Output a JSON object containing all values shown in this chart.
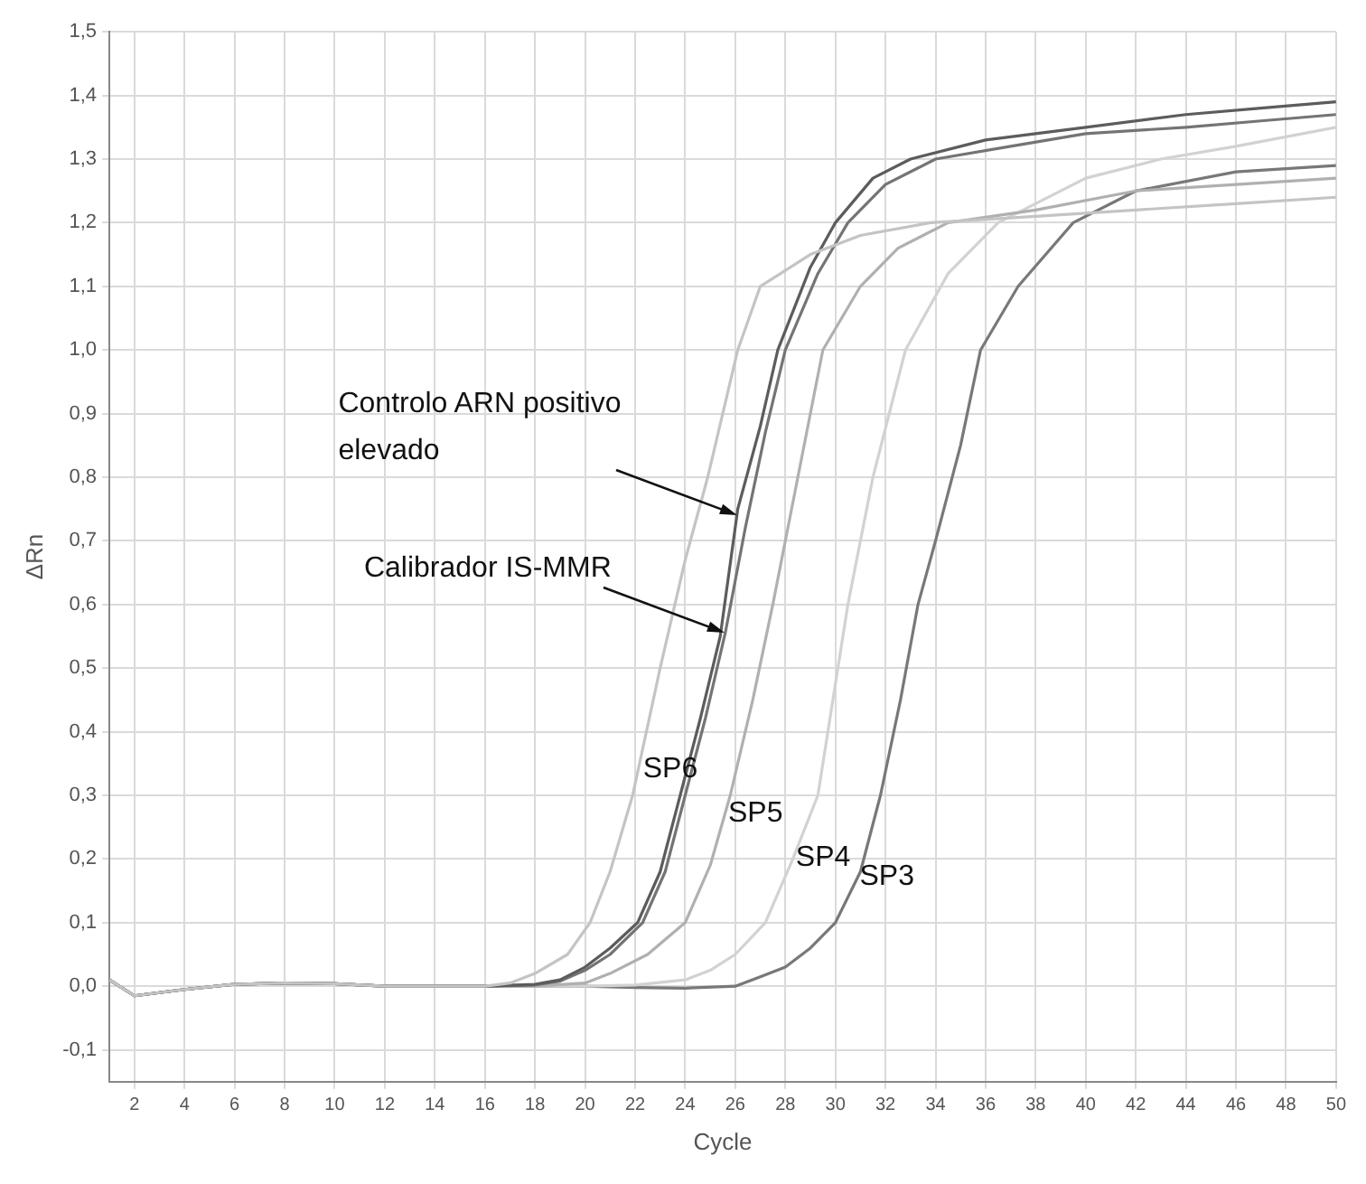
{
  "chart_data": {
    "type": "line",
    "xlabel": "Cycle",
    "ylabel": "ΔRn",
    "xlim": [
      1,
      50
    ],
    "xticks": [
      2,
      4,
      6,
      8,
      10,
      12,
      14,
      16,
      18,
      20,
      22,
      24,
      26,
      28,
      30,
      32,
      34,
      36,
      38,
      40,
      42,
      44,
      46,
      48,
      50
    ],
    "ylim": [
      -0.15,
      1.5
    ],
    "yticks": [
      {
        "value": -0.1,
        "label": "-0,1"
      },
      {
        "value": 0,
        "label": "0,0"
      },
      {
        "value": 0.1,
        "label": "0,1"
      },
      {
        "value": 0.2,
        "label": "0,2"
      },
      {
        "value": 0.3,
        "label": "0,3"
      },
      {
        "value": 0.4,
        "label": "0,4"
      },
      {
        "value": 0.5,
        "label": "0,5"
      },
      {
        "value": 0.6,
        "label": "0,6"
      },
      {
        "value": 0.7,
        "label": "0,7"
      },
      {
        "value": 0.8,
        "label": "0,8"
      },
      {
        "value": 0.9,
        "label": "0,9"
      },
      {
        "value": 1.0,
        "label": "1,0"
      },
      {
        "value": 1.1,
        "label": "1,1"
      },
      {
        "value": 1.2,
        "label": "1,2"
      },
      {
        "value": 1.3,
        "label": "1,3"
      },
      {
        "value": 1.4,
        "label": "1,4"
      },
      {
        "value": 1.5,
        "label": "1,5"
      }
    ],
    "grid": true,
    "legend": false,
    "marker": "none",
    "line_style": "solid",
    "series": [
      {
        "color": "#c4c4c4",
        "x": [
          1,
          2,
          4,
          6,
          8,
          10,
          12,
          14,
          16,
          17,
          18,
          19.3,
          20.2,
          21,
          21.9,
          23,
          24,
          24.9,
          26.1,
          27,
          29,
          31,
          33.8,
          38,
          42,
          46,
          50
        ],
        "values": [
          0.01,
          -0.015,
          -0.005,
          0.003,
          0.005,
          0.004,
          0.0,
          0.0,
          0.0,
          0.005,
          0.02,
          0.05,
          0.1,
          0.18,
          0.3,
          0.5,
          0.67,
          0.8,
          1.0,
          1.1,
          1.15,
          1.18,
          1.2,
          1.21,
          1.22,
          1.23,
          1.24
        ]
      },
      {
        "color": "#5c5c5c",
        "x": [
          1,
          2,
          4,
          6,
          8,
          10,
          12,
          14,
          16,
          18,
          19,
          20,
          21,
          22.1,
          23,
          23.8,
          24.6,
          25.4,
          26.1,
          27,
          27.7,
          29,
          30,
          31.5,
          33,
          36,
          40,
          44,
          47,
          50
        ],
        "values": [
          0.01,
          -0.015,
          -0.005,
          0.003,
          0.005,
          0.004,
          0.0,
          0.0,
          0.0,
          0.003,
          0.01,
          0.03,
          0.06,
          0.1,
          0.18,
          0.3,
          0.42,
          0.55,
          0.75,
          0.88,
          1.0,
          1.13,
          1.2,
          1.27,
          1.3,
          1.33,
          1.35,
          1.37,
          1.38,
          1.39
        ]
      },
      {
        "color": "#747474",
        "x": [
          1,
          2,
          4,
          6,
          8,
          10,
          12,
          14,
          16,
          18,
          19,
          20,
          21,
          22.3,
          23.2,
          24,
          24.8,
          25.6,
          26.4,
          27.2,
          28,
          29.3,
          30.5,
          32,
          34,
          37,
          40,
          44,
          47,
          50
        ],
        "values": [
          0.01,
          -0.015,
          -0.005,
          0.003,
          0.005,
          0.004,
          0.0,
          0.0,
          0.0,
          0.002,
          0.008,
          0.025,
          0.05,
          0.1,
          0.18,
          0.3,
          0.42,
          0.555,
          0.72,
          0.87,
          1.0,
          1.12,
          1.2,
          1.26,
          1.3,
          1.32,
          1.34,
          1.35,
          1.36,
          1.37
        ]
      },
      {
        "color": "#b0b0b0",
        "x": [
          1,
          2,
          4,
          6,
          8,
          10,
          12,
          14,
          16,
          18,
          20,
          21,
          22.5,
          24,
          25,
          25.8,
          26.7,
          27.5,
          28.5,
          29.5,
          31,
          32.5,
          34.5,
          38,
          42,
          46,
          50
        ],
        "values": [
          0.01,
          -0.015,
          -0.005,
          0.003,
          0.005,
          0.004,
          0.0,
          0.0,
          0.0,
          0.0,
          0.005,
          0.02,
          0.05,
          0.1,
          0.19,
          0.3,
          0.45,
          0.6,
          0.8,
          1.0,
          1.1,
          1.16,
          1.2,
          1.22,
          1.25,
          1.26,
          1.27
        ]
      },
      {
        "color": "#d2d2d2",
        "x": [
          1,
          2,
          4,
          6,
          8,
          10,
          12,
          14,
          16,
          18,
          20,
          22,
          24,
          25,
          26,
          27.2,
          28.3,
          29.3,
          30.5,
          31.5,
          32.8,
          34.5,
          36.5,
          40,
          43,
          46,
          50
        ],
        "values": [
          0.01,
          -0.015,
          -0.005,
          0.003,
          0.005,
          0.004,
          0.0,
          0.0,
          0.0,
          0.0,
          0.0,
          0.002,
          0.01,
          0.025,
          0.05,
          0.1,
          0.2,
          0.3,
          0.6,
          0.8,
          1.0,
          1.12,
          1.2,
          1.27,
          1.3,
          1.32,
          1.35
        ]
      },
      {
        "color": "#787878",
        "x": [
          1,
          2,
          4,
          6,
          8,
          10,
          12,
          14,
          16,
          18,
          20,
          22,
          24,
          26,
          27,
          28,
          29,
          30,
          31,
          31.8,
          32.6,
          33.3,
          34,
          35,
          35.8,
          37.3,
          39.5,
          42,
          46,
          50
        ],
        "values": [
          0.01,
          -0.015,
          -0.005,
          0.003,
          0.005,
          0.004,
          0.0,
          0.0,
          0.0,
          0.0,
          0.0,
          -0.002,
          -0.003,
          0.0,
          0.015,
          0.03,
          0.06,
          0.1,
          0.18,
          0.3,
          0.45,
          0.6,
          0.7,
          0.85,
          1.0,
          1.1,
          1.2,
          1.25,
          1.28,
          1.29
        ]
      }
    ],
    "annotations": [
      {
        "text": "Controlo ARN positivo elevado",
        "x": 26.05,
        "y": 0.74
      },
      {
        "text": "Calibrador IS-MMR",
        "x": 25.6,
        "y": 0.555
      },
      {
        "text": "SP6",
        "x": 22.1,
        "y": 0.33
      },
      {
        "text": "SP5",
        "x": 25.5,
        "y": 0.26
      },
      {
        "text": "SP4",
        "x": 28.2,
        "y": 0.19
      },
      {
        "text": "SP3",
        "x": 30.75,
        "y": 0.16
      }
    ]
  }
}
